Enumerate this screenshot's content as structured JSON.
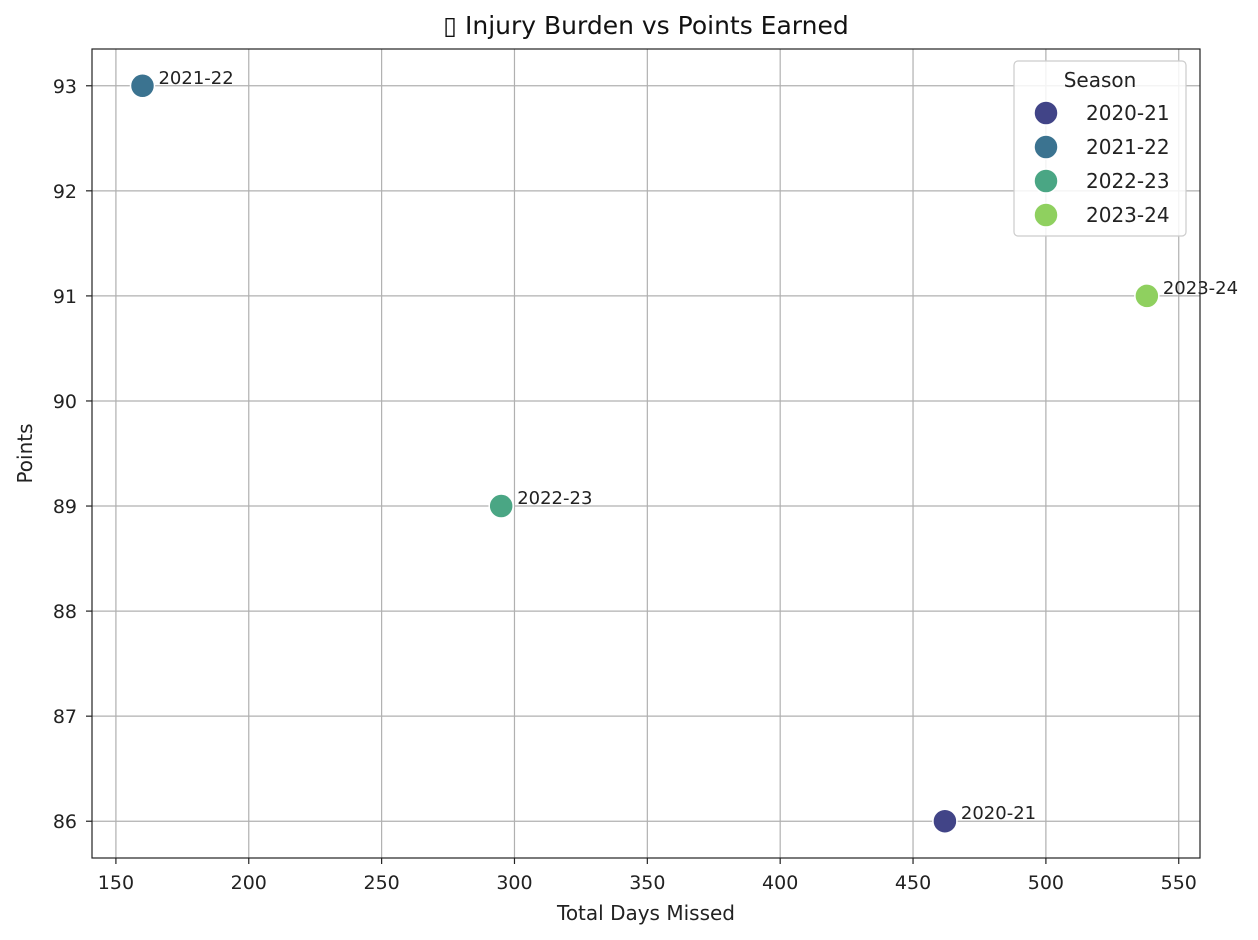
{
  "chart_data": {
    "type": "scatter",
    "title": "▯ Injury Burden vs Points Earned",
    "xlabel": "Total Days Missed",
    "ylabel": "Points",
    "xlim": [
      141,
      558
    ],
    "ylim": [
      85.65,
      93.35
    ],
    "xticks": [
      150,
      200,
      250,
      300,
      350,
      400,
      450,
      500,
      550
    ],
    "yticks": [
      86,
      87,
      88,
      89,
      90,
      91,
      92,
      93
    ],
    "grid": true,
    "legend": {
      "title": "Season",
      "placement": "top-right"
    },
    "series": [
      {
        "name": "2020-21",
        "x": 462,
        "y": 86,
        "color": "#414487"
      },
      {
        "name": "2021-22",
        "x": 160,
        "y": 93,
        "color": "#3b7390"
      },
      {
        "name": "2022-23",
        "x": 295,
        "y": 89,
        "color": "#4aa684"
      },
      {
        "name": "2023-24",
        "x": 538,
        "y": 91,
        "color": "#8fd05f"
      }
    ]
  }
}
